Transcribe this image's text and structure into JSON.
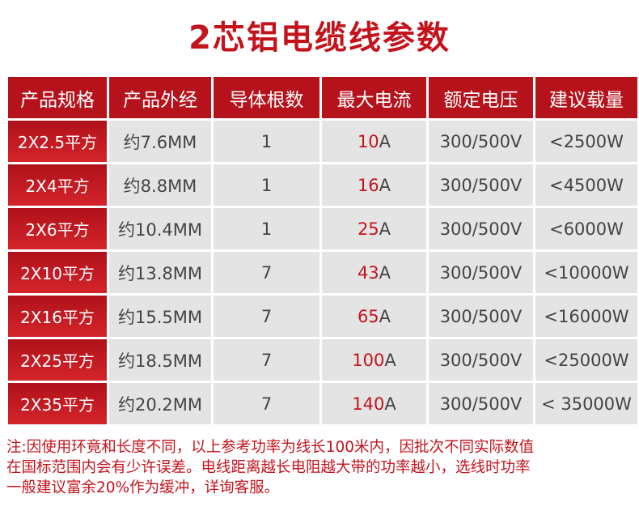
{
  "title": "2芯铝电缆线参数",
  "table": {
    "header": [
      "产品规格",
      "产品外经",
      "导体根数",
      "最大电流",
      "额定电压",
      "建议载量"
    ],
    "rows": [
      [
        "2X2.5平方",
        "约7.6MM",
        "1",
        "10A",
        "300/500V",
        "<2500W"
      ],
      [
        "2X4平方",
        "约8.8MM",
        "1",
        "16A",
        "300/500V",
        "<4500W"
      ],
      [
        "2X6平方",
        "约10.4MM",
        "1",
        "25A",
        "300/500V",
        "<6000W"
      ],
      [
        "2X10平方",
        "约13.8MM",
        "7",
        "43A",
        "300/500V",
        "<10000W"
      ],
      [
        "2X16平方",
        "约15.5MM",
        "7",
        "65A",
        "300/500V",
        "<16000W"
      ],
      [
        "2X25平方",
        "约18.5MM",
        "7",
        "100A",
        "300/500V",
        "<25000W"
      ],
      [
        "2X35平方",
        "约20.2MM",
        "7",
        "140A",
        "300/500V",
        "< 35000W"
      ]
    ]
  },
  "note": [
    "注:因使用环竟和长度不同，以上参考功率为线长100米内，因批次不同实际数值",
    "在国标范围内会有少许误差。电线距离越长电阻越大带的功率越小，选线时功率",
    "一般建议富余20%作为缓冲，详询客服。"
  ]
}
